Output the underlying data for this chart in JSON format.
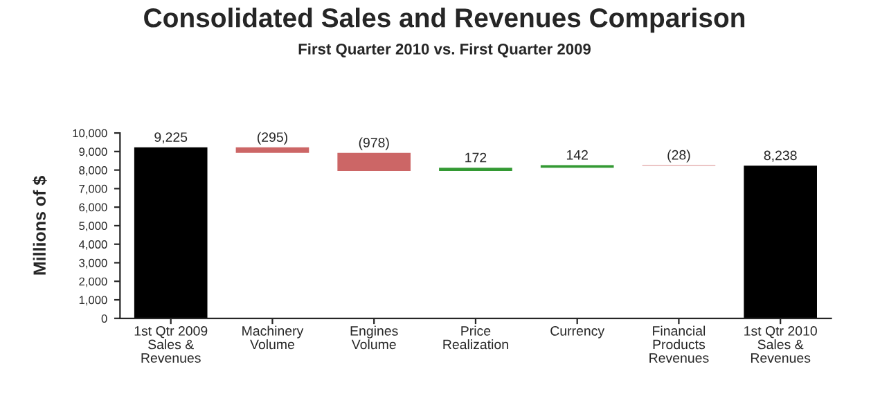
{
  "chart_data": {
    "type": "bar",
    "title": "Consolidated Sales and Revenues Comparison",
    "subtitle": "First Quarter 2010 vs. First Quarter 2009",
    "ylabel": "Millions of $",
    "categories": [
      "1st Qtr 2009 Sales & Revenues",
      "Machinery Volume",
      "Engines Volume",
      "Price Realization",
      "Currency",
      "Financial Products Revenues",
      "1st Qtr 2010 Sales & Revenues"
    ],
    "values": [
      9225,
      -295,
      -978,
      172,
      142,
      -28,
      8238
    ],
    "base": [
      0,
      9225,
      8930,
      7952,
      8124,
      8266,
      0
    ],
    "colors": [
      "#000000",
      "#cc6666",
      "#cc6666",
      "#339933",
      "#339933",
      "#cc6666",
      "#000000"
    ],
    "value_labels": [
      "9,225",
      "(295)",
      "(978)",
      "172",
      "142",
      "(28)",
      "8,238"
    ],
    "ylim": [
      0,
      10000
    ],
    "yticks": [
      {
        "value": 0,
        "label": "0"
      },
      {
        "value": 1000,
        "label": "1,000"
      },
      {
        "value": 2000,
        "label": "2,000"
      },
      {
        "value": 3000,
        "label": "3,000"
      },
      {
        "value": 4000,
        "label": "4,000"
      },
      {
        "value": 5000,
        "label": "5,000"
      },
      {
        "value": 6000,
        "label": "6,000"
      },
      {
        "value": 7000,
        "label": "7,000"
      },
      {
        "value": 8000,
        "label": "8,000"
      },
      {
        "value": 9000,
        "label": "9,000"
      },
      {
        "value": 10000,
        "label": "10,000"
      }
    ],
    "grid": false
  }
}
